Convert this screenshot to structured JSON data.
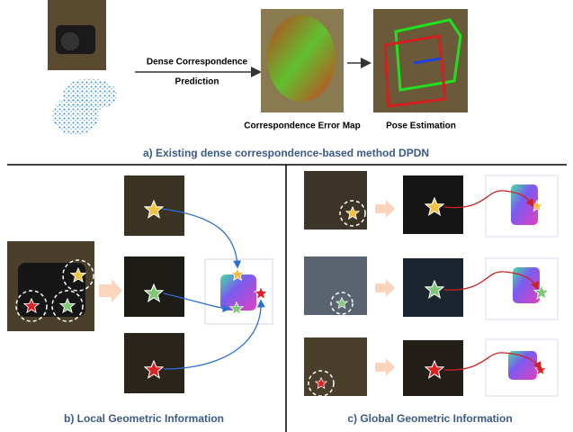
{
  "top": {
    "arrow_label": [
      "Dense Correspondence",
      "Prediction"
    ],
    "error_map_label": "Correspondence Error Map",
    "pose_label": "Pose Estimation",
    "caption": "a) Existing dense correspondence-based method DPDN"
  },
  "local": {
    "caption": "b) Local Geometric Information"
  },
  "global": {
    "caption": "c) Global Geometric Information"
  }
}
